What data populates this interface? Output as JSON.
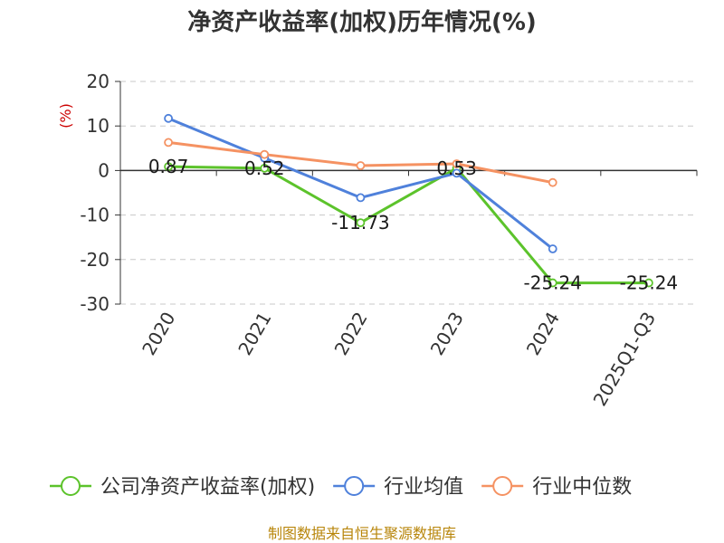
{
  "chart_data": {
    "type": "line",
    "title": "净资产收益率(加权)历年情况(%)",
    "ylabel": "(%)",
    "xlabel": "",
    "ylim": [
      -30,
      20
    ],
    "yticks": [
      20,
      10,
      0,
      -10,
      -20,
      -30
    ],
    "ytick_labels": [
      "20",
      "10",
      "0",
      "-10",
      "-20",
      "-30"
    ],
    "categories": [
      "2020",
      "2021",
      "2022",
      "2023",
      "2024",
      "2025Q1-Q3"
    ],
    "grid": true,
    "legend_position": "bottom",
    "series": [
      {
        "name": "公司净资产收益率(加权)",
        "color": "#5cc32b",
        "values": [
          0.87,
          0.52,
          -11.73,
          0.53,
          -25.24,
          -25.24
        ],
        "labels": [
          "0.87",
          "0.52",
          "-11.73",
          "0.53",
          "-25.24",
          "-25.24"
        ]
      },
      {
        "name": "行业均值",
        "color": "#4f81db",
        "values": [
          11.7,
          2.8,
          -6.1,
          -0.6,
          -17.6,
          null
        ]
      },
      {
        "name": "行业中位数",
        "color": "#f59262",
        "values": [
          6.3,
          3.6,
          1.1,
          1.5,
          -2.7,
          null
        ]
      }
    ]
  },
  "source": "制图数据来自恒生聚源数据库"
}
